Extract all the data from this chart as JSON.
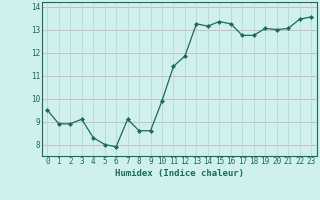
{
  "x": [
    0,
    1,
    2,
    3,
    4,
    5,
    6,
    7,
    8,
    9,
    10,
    11,
    12,
    13,
    14,
    15,
    16,
    17,
    18,
    19,
    20,
    21,
    22,
    23
  ],
  "y": [
    9.5,
    8.9,
    8.9,
    9.1,
    8.3,
    8.0,
    7.9,
    9.1,
    8.6,
    8.6,
    9.9,
    11.4,
    11.85,
    13.25,
    13.15,
    13.35,
    13.25,
    12.75,
    12.75,
    13.05,
    13.0,
    13.05,
    13.45,
    13.55
  ],
  "xlim": [
    -0.5,
    23.5
  ],
  "ylim": [
    7.5,
    14.2
  ],
  "yticks": [
    8,
    9,
    10,
    11,
    12,
    13,
    14
  ],
  "xticks": [
    0,
    1,
    2,
    3,
    4,
    5,
    6,
    7,
    8,
    9,
    10,
    11,
    12,
    13,
    14,
    15,
    16,
    17,
    18,
    19,
    20,
    21,
    22,
    23
  ],
  "xlabel": "Humidex (Indice chaleur)",
  "line_color": "#1a6b5a",
  "marker": "D",
  "marker_size": 2.0,
  "bg_color": "#cff0ed",
  "grid_h_color": "#c8b4b4",
  "grid_v_color": "#b8d8d4",
  "title": ""
}
